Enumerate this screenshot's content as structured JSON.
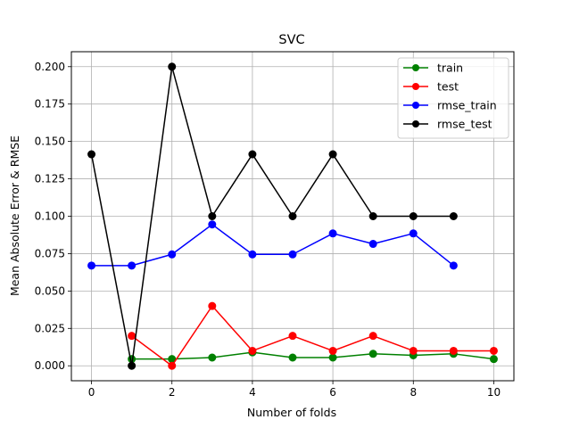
{
  "chart_data": {
    "type": "line",
    "title": "SVC",
    "xlabel": "Number of folds",
    "ylabel": "Mean Absolute Error & RMSE",
    "xlim": [
      -0.5,
      10.5
    ],
    "ylim": [
      -0.01,
      0.21
    ],
    "xticks": [
      0,
      2,
      4,
      6,
      8,
      10
    ],
    "xtick_labels": [
      "0",
      "2",
      "4",
      "6",
      "8",
      "10"
    ],
    "yticks": [
      0.0,
      0.025,
      0.05,
      0.075,
      0.1,
      0.125,
      0.15,
      0.175,
      0.2
    ],
    "ytick_labels": [
      "0.000",
      "0.025",
      "0.050",
      "0.075",
      "0.100",
      "0.125",
      "0.150",
      "0.175",
      "0.200"
    ],
    "grid": true,
    "legend_position": "top-right",
    "series": [
      {
        "name": "train",
        "color": "#008000",
        "x": [
          1,
          2,
          3,
          4,
          5,
          6,
          7,
          8,
          9,
          10
        ],
        "y": [
          0.0045,
          0.0045,
          0.0055,
          0.009,
          0.0055,
          0.0055,
          0.008,
          0.007,
          0.008,
          0.0045
        ]
      },
      {
        "name": "test",
        "color": "#ff0000",
        "x": [
          1,
          2,
          3,
          4,
          5,
          6,
          7,
          8,
          9,
          10
        ],
        "y": [
          0.02,
          0.0,
          0.04,
          0.01,
          0.02,
          0.01,
          0.02,
          0.01,
          0.01,
          0.01
        ]
      },
      {
        "name": "rmse_train",
        "color": "#0000ff",
        "x": [
          0,
          1,
          2,
          3,
          4,
          5,
          6,
          7,
          8,
          9
        ],
        "y": [
          0.067,
          0.067,
          0.0745,
          0.0945,
          0.0745,
          0.0745,
          0.0885,
          0.0815,
          0.0885,
          0.067
        ]
      },
      {
        "name": "rmse_test",
        "color": "#000000",
        "x": [
          0,
          1,
          2,
          3,
          4,
          5,
          6,
          7,
          8,
          9
        ],
        "y": [
          0.1414,
          0.0,
          0.2,
          0.1,
          0.1414,
          0.1,
          0.1414,
          0.1,
          0.1,
          0.1
        ]
      }
    ]
  }
}
